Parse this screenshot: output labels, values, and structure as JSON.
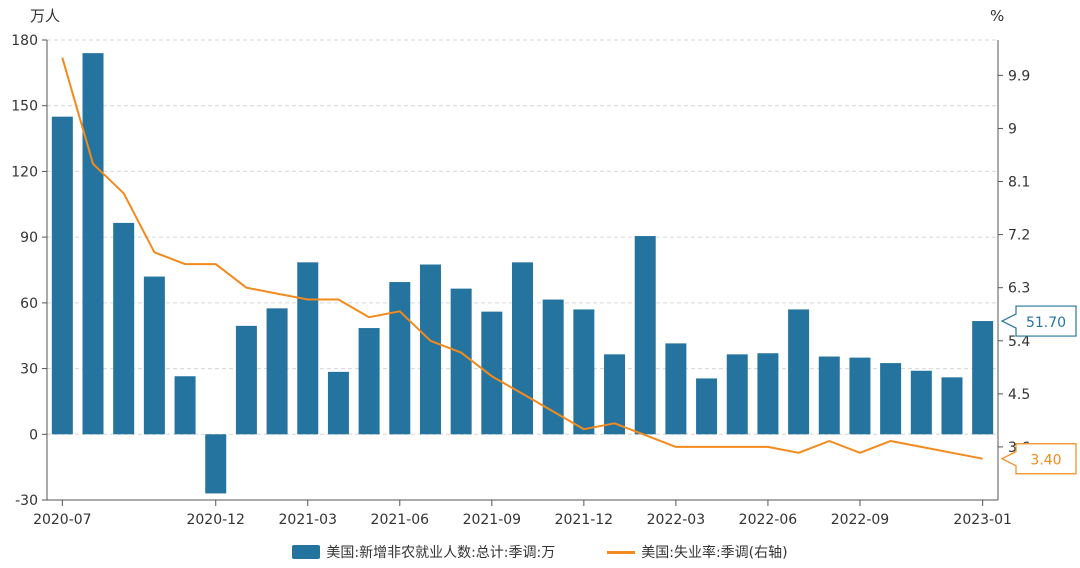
{
  "chart_data": {
    "type": "bar",
    "left_unit": "万人",
    "right_unit": "%",
    "categories": [
      "2020-07",
      "2020-08",
      "2020-09",
      "2020-10",
      "2020-11",
      "2020-12",
      "2021-01",
      "2021-02",
      "2021-03",
      "2021-04",
      "2021-05",
      "2021-06",
      "2021-07",
      "2021-08",
      "2021-09",
      "2021-10",
      "2021-11",
      "2021-12",
      "2022-01",
      "2022-02",
      "2022-03",
      "2022-04",
      "2022-05",
      "2022-06",
      "2022-07",
      "2022-08",
      "2022-09",
      "2022-10",
      "2022-11",
      "2022-12",
      "2023-01"
    ],
    "x_tick_labels": [
      "2020-07",
      "2020-12",
      "2021-03",
      "2021-06",
      "2021-09",
      "2021-12",
      "2022-03",
      "2022-06",
      "2022-09",
      "2023-01"
    ],
    "series": [
      {
        "name": "美国:新增非农就业人数:总计:季调:万",
        "type": "bar",
        "axis": "left",
        "color": "#2574a0",
        "values": [
          145,
          174,
          96.5,
          72,
          26.5,
          -27,
          49.5,
          57.5,
          78.5,
          28.5,
          48.5,
          69.5,
          77.5,
          66.5,
          56,
          78.5,
          61.5,
          57,
          36.5,
          90.5,
          41.5,
          25.5,
          36.5,
          37,
          57,
          35.5,
          35,
          32.5,
          29,
          26,
          51.7
        ]
      },
      {
        "name": "美国:失业率:季调(右轴)",
        "type": "line",
        "axis": "right",
        "color": "#f28a1d",
        "values": [
          10.2,
          8.4,
          7.9,
          6.9,
          6.7,
          6.7,
          6.3,
          6.2,
          6.1,
          6.1,
          5.8,
          5.9,
          5.4,
          5.2,
          4.8,
          4.5,
          4.2,
          3.9,
          4.0,
          3.8,
          3.6,
          3.6,
          3.6,
          3.6,
          3.5,
          3.7,
          3.5,
          3.7,
          3.6,
          3.5,
          3.4
        ]
      }
    ],
    "left_axis": {
      "ylim": [
        -30,
        180
      ],
      "ticks": [
        "-30",
        "0",
        "30",
        "60",
        "90",
        "120",
        "150",
        "180"
      ]
    },
    "right_axis": {
      "ylim": [
        2.7,
        10.5
      ],
      "ticks": [
        "3.6",
        "4.5",
        "5.4",
        "6.3",
        "7.2",
        "8.1",
        "9",
        "9.9"
      ]
    },
    "end_labels": {
      "bar": "51.70",
      "line": "3.40"
    },
    "grid": true,
    "legend_position": "bottom"
  }
}
